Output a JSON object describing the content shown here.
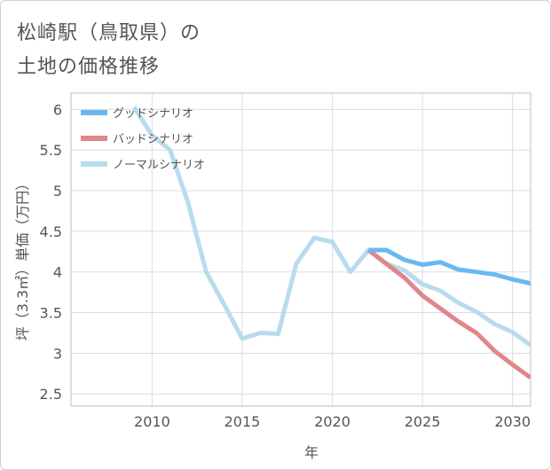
{
  "title": {
    "line1": "松崎駅（鳥取県）の",
    "line2": "土地の価格推移"
  },
  "chart_data": {
    "type": "line",
    "xlabel": "年",
    "ylabel": "坪（3.3㎡）単価（万円）",
    "xlim": [
      2005.5,
      2031
    ],
    "ylim": [
      2.35,
      6.2
    ],
    "xticks": [
      2010,
      2015,
      2020,
      2025,
      2030
    ],
    "yticks": [
      2.5,
      3,
      3.5,
      4,
      4.5,
      5,
      5.5,
      6
    ],
    "grid": true,
    "legend_position": "top-left",
    "series": [
      {
        "name": "グッドシナリオ",
        "color": "#6ab9ee",
        "x": [
          2022,
          2023,
          2024,
          2025,
          2026,
          2027,
          2028,
          2029,
          2030,
          2031
        ],
        "y": [
          4.27,
          4.27,
          4.15,
          4.09,
          4.12,
          4.03,
          4.0,
          3.97,
          3.91,
          3.86
        ]
      },
      {
        "name": "バッドシナリオ",
        "color": "#e0868c",
        "x": [
          2022,
          2023,
          2024,
          2025,
          2026,
          2027,
          2028,
          2029,
          2030,
          2031
        ],
        "y": [
          4.27,
          4.1,
          3.93,
          3.71,
          3.55,
          3.39,
          3.25,
          3.03,
          2.86,
          2.7
        ]
      },
      {
        "name": "ノーマルシナリオ",
        "color": "#b8dced",
        "x": [
          2009,
          2010,
          2011,
          2012,
          2013,
          2014,
          2015,
          2016,
          2017,
          2018,
          2019,
          2020,
          2021,
          2022,
          2023,
          2024,
          2025,
          2026,
          2027,
          2028,
          2029,
          2030,
          2031
        ],
        "y": [
          6.03,
          5.68,
          5.5,
          4.85,
          4.0,
          3.6,
          3.18,
          3.25,
          3.24,
          4.1,
          4.42,
          4.37,
          4.0,
          4.27,
          4.1,
          4.02,
          3.85,
          3.77,
          3.62,
          3.51,
          3.36,
          3.26,
          3.1
        ]
      }
    ]
  }
}
